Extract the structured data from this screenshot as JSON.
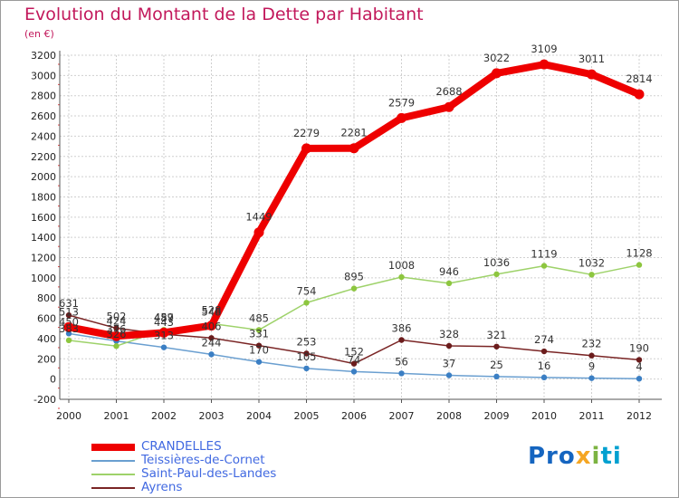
{
  "header": {
    "title": "Evolution du Montant de la Dette par Habitant",
    "subtitle": "(en €)"
  },
  "logo": {
    "text_parts": [
      "Pro",
      "x",
      "i",
      "ti"
    ]
  },
  "colors": {
    "title": "#c2185b",
    "legend_text": "#4169e1",
    "grid": "#cfcfcf",
    "axis": "#555555",
    "tick_red": "#e04040"
  },
  "chart_data": {
    "type": "line",
    "title": "Evolution du Montant de la Dette par Habitant",
    "subtitle": "(en €)",
    "xlabel": "",
    "ylabel": "",
    "ylim": [
      -200,
      3200
    ],
    "ytick_step": 200,
    "grid": true,
    "legend_placement": "bottom-left",
    "x": [
      "2000",
      "2001",
      "2002",
      "2003",
      "2004",
      "2005",
      "2006",
      "2007",
      "2008",
      "2009",
      "2010",
      "2011",
      "2012"
    ],
    "series": [
      {
        "name": "CRANDELLES",
        "color": "#ee0000",
        "width": 8,
        "values": [
          513,
          424,
          459,
          528,
          1449,
          2279,
          2281,
          2579,
          2688,
          3022,
          3109,
          3011,
          2814
        ],
        "labels": [
          "513",
          "424",
          "459",
          "528",
          "1449",
          "2279",
          "2281",
          "2579",
          "2688",
          "3022",
          "3109",
          "3011",
          "2814"
        ]
      },
      {
        "name": "Teissières-de-Cornet",
        "color": "#6a9fd0",
        "marker": "#3b7fc4",
        "width": 1.5,
        "values": [
          450,
          376,
          313,
          244,
          170,
          105,
          74,
          56,
          37,
          25,
          16,
          9,
          4
        ],
        "labels": [
          "450",
          "376",
          "313",
          "244",
          "170",
          "105",
          "74",
          "56",
          "37",
          "25",
          "16",
          "9",
          "4"
        ]
      },
      {
        "name": "Saint-Paul-des-Landes",
        "color": "#9ed26a",
        "marker": "#8dc63f",
        "width": 1.5,
        "values": [
          383,
          326,
          487,
          548,
          485,
          754,
          895,
          1008,
          946,
          1036,
          1119,
          1032,
          1128
        ],
        "labels": [
          "383",
          "326",
          "487",
          "548",
          "485",
          "754",
          "895",
          "1008",
          "946",
          "1036",
          "1119",
          "1032",
          "1128"
        ]
      },
      {
        "name": "Ayrens",
        "color": "#7a2525",
        "marker": "#6b1c1c",
        "width": 1.5,
        "values": [
          631,
          502,
          443,
          406,
          331,
          253,
          152,
          386,
          328,
          321,
          274,
          232,
          190
        ],
        "labels": [
          "631",
          "502",
          "443",
          "406",
          "331",
          "253",
          "152",
          "386",
          "328",
          "321",
          "274",
          "232",
          "190"
        ]
      }
    ]
  }
}
